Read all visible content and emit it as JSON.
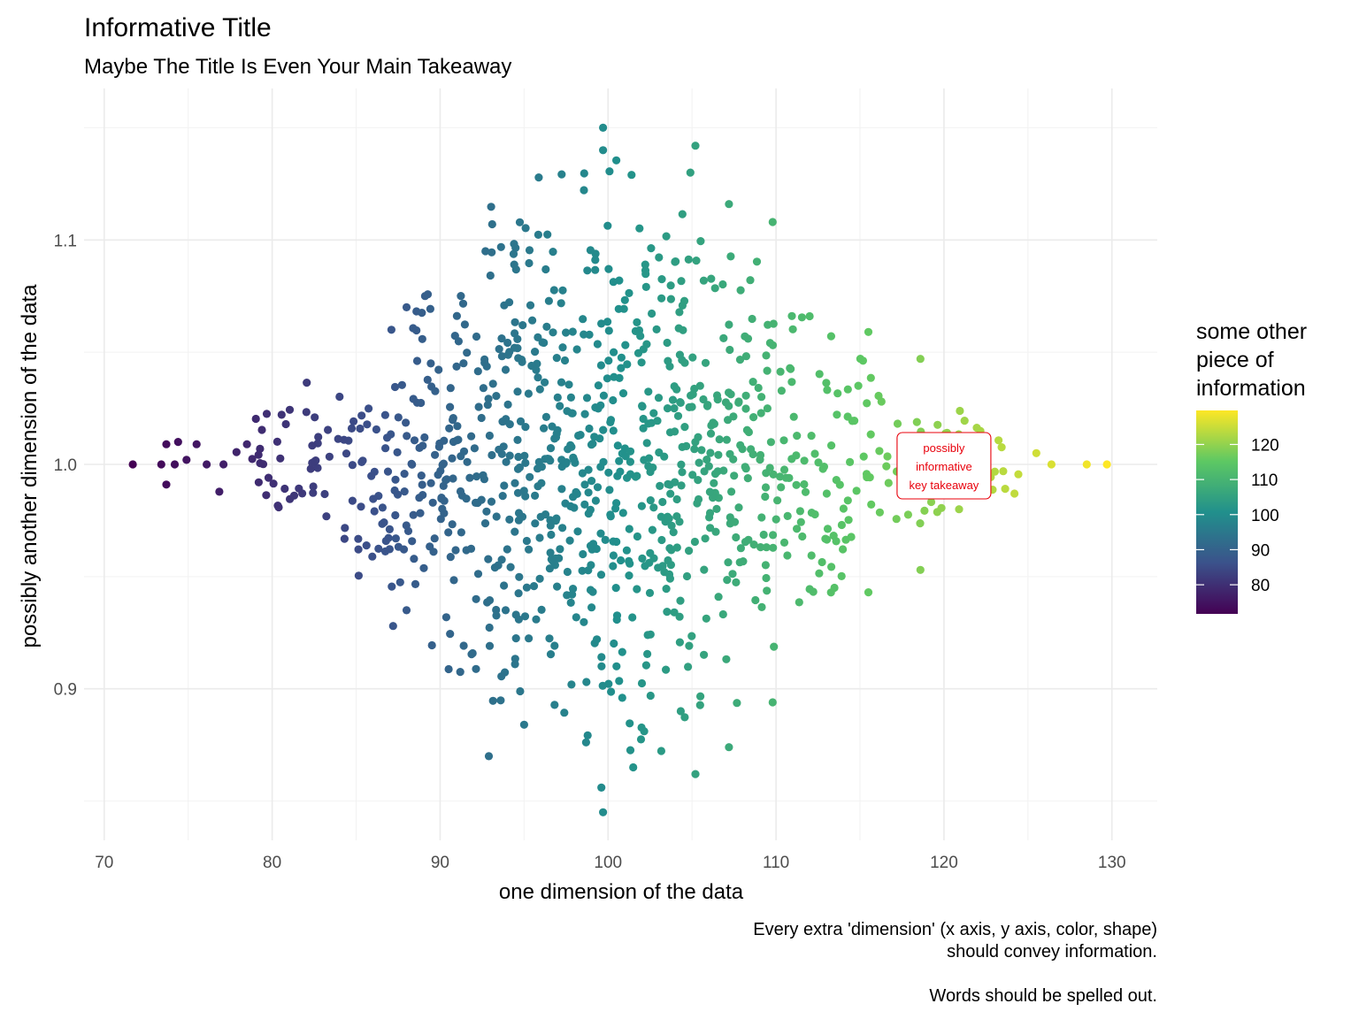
{
  "chart_data": {
    "type": "scatter",
    "title": "Informative Title",
    "subtitle": "Maybe The Title Is Even Your Main Takeaway",
    "xlabel": "one dimension of the data",
    "ylabel": "possibly another dimension of the data",
    "xlim": [
      68.8,
      132.7
    ],
    "ylim": [
      0.8325,
      1.1675
    ],
    "x_ticks": [
      70,
      80,
      90,
      100,
      110,
      120,
      130
    ],
    "x_tick_labels": [
      "70",
      "80",
      "90",
      "100",
      "110",
      "120",
      "130"
    ],
    "y_ticks": [
      0.9,
      1.0,
      1.1
    ],
    "y_tick_labels": [
      "0.9",
      "1.0",
      "1.1"
    ],
    "grid": true,
    "color_scale": {
      "name": "viridis",
      "legend_title": [
        "some other",
        "piece of",
        "information"
      ],
      "range": [
        71.7,
        129.7
      ],
      "ticks": [
        80,
        90,
        100,
        110,
        120
      ],
      "tick_labels": [
        "80",
        "90",
        "100",
        "110",
        "120"
      ],
      "legend_position": "right",
      "colors": [
        "#440154",
        "#3B528B",
        "#21908C",
        "#5DC863",
        "#FDE725"
      ]
    },
    "distribution": {
      "x_mean": 100,
      "x_sd": 10,
      "x_min": 71.7,
      "x_max": 129.7,
      "y_center": 1.0,
      "y_min": 0.845,
      "y_max": 1.15
    },
    "points": [
      [
        71.7,
        1.0
      ],
      [
        73.4,
        1.0
      ],
      [
        73.7,
        1.009
      ],
      [
        73.7,
        0.991
      ],
      [
        74.2,
        1.0
      ],
      [
        74.4,
        1.01
      ],
      [
        74.9,
        1.002
      ],
      [
        75.5,
        1.009
      ],
      [
        76.1,
        1.0
      ],
      [
        77.1,
        1.0
      ],
      [
        78.5,
        1.009
      ],
      [
        79.2,
        0.992
      ],
      [
        87.1,
        1.06
      ],
      [
        88.0,
        1.07
      ],
      [
        89.1,
        1.075
      ],
      [
        87.2,
        0.928
      ],
      [
        88.0,
        0.935
      ],
      [
        92.7,
        1.095
      ],
      [
        93.1,
        1.107
      ],
      [
        92.9,
        0.87
      ],
      [
        93.9,
        0.935
      ],
      [
        99.7,
        1.15
      ],
      [
        99.7,
        1.14
      ],
      [
        99.7,
        0.845
      ],
      [
        99.6,
        0.856
      ],
      [
        101.4,
        1.129
      ],
      [
        101.5,
        0.865
      ],
      [
        105.2,
        1.142
      ],
      [
        105.2,
        0.862
      ],
      [
        104.9,
        1.13
      ],
      [
        107.2,
        1.116
      ],
      [
        107.2,
        0.874
      ],
      [
        109.8,
        1.108
      ],
      [
        109.8,
        0.894
      ],
      [
        112.0,
        1.066
      ],
      [
        115.5,
        1.059
      ],
      [
        115.5,
        0.943
      ],
      [
        118.6,
        1.047
      ],
      [
        118.6,
        0.953
      ],
      [
        120.9,
        0.98
      ],
      [
        124.2,
        0.987
      ],
      [
        125.5,
        1.005
      ],
      [
        126.4,
        1.0
      ],
      [
        128.5,
        1.0
      ],
      [
        129.7,
        1.0
      ]
    ],
    "annotations": [
      {
        "text": [
          "possibly",
          "informative",
          "key takeaway"
        ],
        "x": 120.0,
        "y": 1.0
      }
    ],
    "caption": [
      "Every extra 'dimension' (x axis, y axis, color, shape)",
      "should convey information.",
      "",
      "Words should be spelled out."
    ]
  }
}
